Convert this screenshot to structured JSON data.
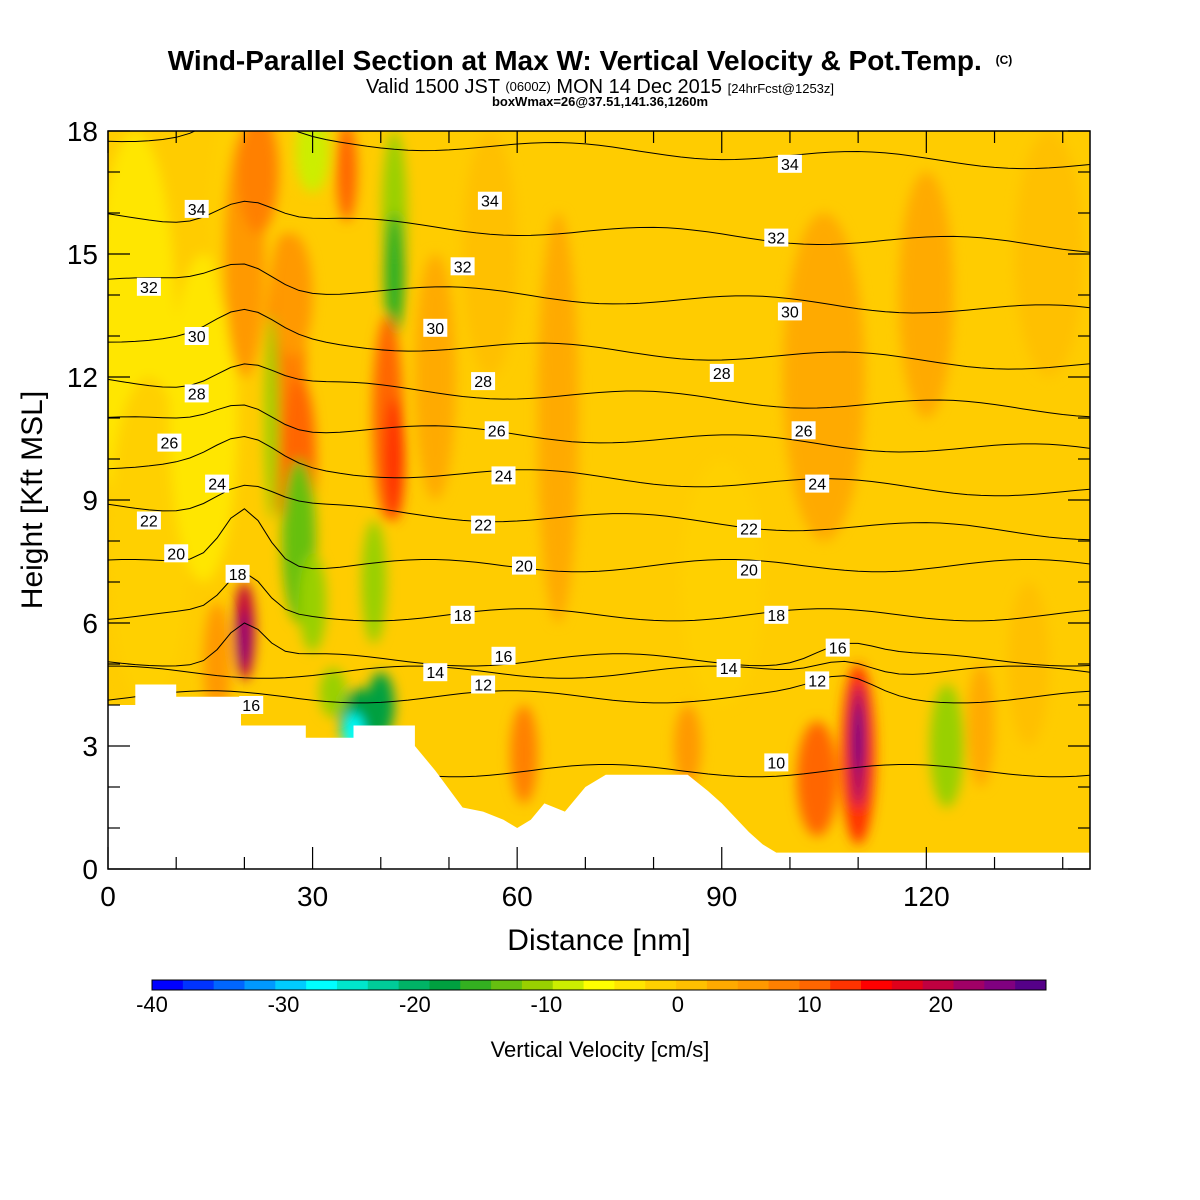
{
  "header": {
    "title_main": "Wind-Parallel Section at Max W: Vertical Velocity & Pot.Temp.",
    "title_copyright": "(C)",
    "valid_prefix": "Valid 1500 JST",
    "valid_z": "(0600Z)",
    "valid_date": "MON 14 Dec 2015",
    "valid_fcst": "[24hrFcst@1253z]",
    "boxwmax": "boxWmax=26@37.51,141.36,1260m"
  },
  "chart_data": {
    "type": "heatmap",
    "xlabel": "Distance [nm]",
    "ylabel": "Height [Kft MSL]",
    "xlim": [
      0,
      144
    ],
    "ylim": [
      0,
      18
    ],
    "x_ticks": [
      "0",
      "30",
      "60",
      "90",
      "120"
    ],
    "y_ticks": [
      "0",
      "3",
      "6",
      "9",
      "12",
      "15",
      "18"
    ],
    "colorbar": {
      "title": "Vertical Velocity [cm/s]",
      "range": [
        -40,
        28
      ],
      "tick_labels": [
        "-40",
        "-30",
        "-20",
        "-10",
        "0",
        "10",
        "20"
      ],
      "colors": [
        "#0000ff",
        "#0033ff",
        "#0066ff",
        "#0099ff",
        "#00ccff",
        "#00ffff",
        "#00e6cc",
        "#00cc99",
        "#00b366",
        "#00a040",
        "#33b020",
        "#66c010",
        "#99d000",
        "#ccee00",
        "#ffff00",
        "#ffe600",
        "#ffd000",
        "#ffc000",
        "#ffaa00",
        "#ff9900",
        "#ff8000",
        "#ff6600",
        "#ff3300",
        "#ff0000",
        "#e0001a",
        "#c00040",
        "#a00066",
        "#800080",
        "#550088"
      ]
    },
    "contour_labels": {
      "theta": [
        "34",
        "34",
        "34",
        "32",
        "32",
        "32",
        "30",
        "30",
        "30",
        "28",
        "28",
        "28",
        "26",
        "26",
        "26",
        "24",
        "24",
        "24",
        "22",
        "22",
        "22",
        "20",
        "20",
        "20",
        "18",
        "18",
        "18",
        "16",
        "16",
        "16",
        "14",
        "14",
        "12",
        "12",
        "10"
      ]
    },
    "extremes": {
      "max_updraft_cm_s": 26,
      "updraft_cores_nm": [
        20,
        110
      ],
      "downdraft_cores_nm": [
        37,
        123
      ]
    }
  }
}
